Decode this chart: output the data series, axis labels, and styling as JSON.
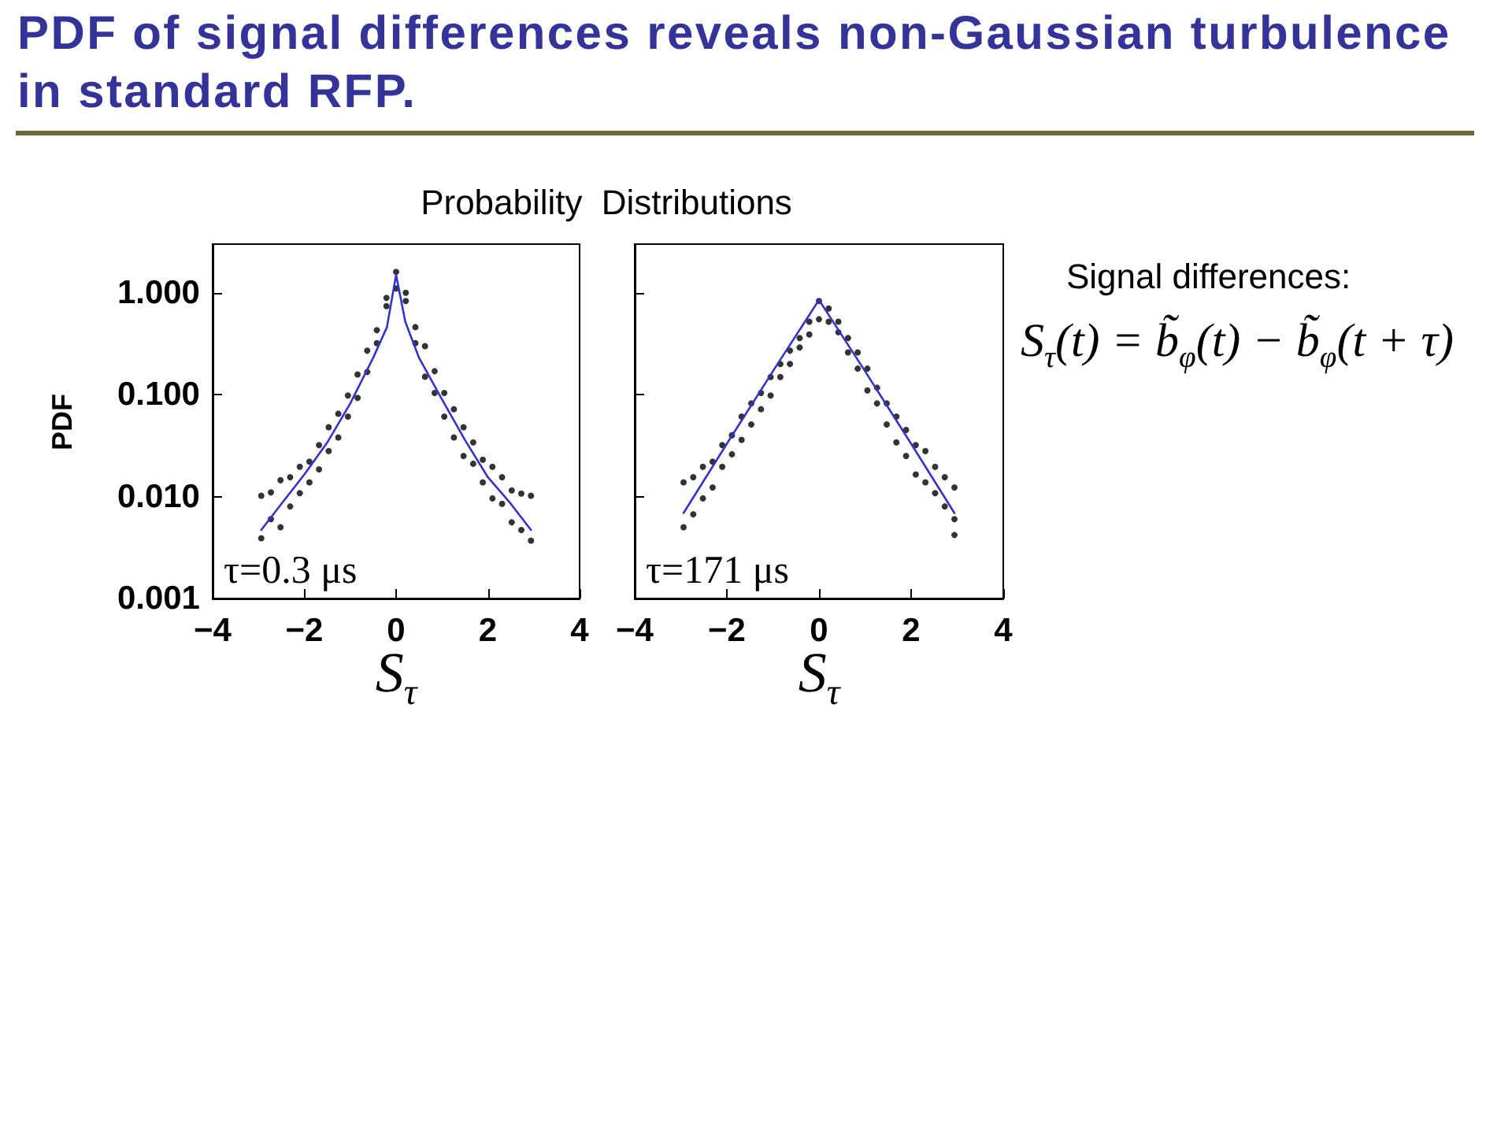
{
  "chart_data": [
    {
      "type": "scatter",
      "title": "PDF of signal differences reveals non-Gaussian turbulence in standard RFP.",
      "subtitle": "Probability Distributions",
      "xlabel": "S$_{τ}$",
      "ylabel": "PDF",
      "annotations": [
        "τ=0.3 μs"
      ],
      "xlim": [
        -4,
        4
      ],
      "xticks": [
        -4,
        -2,
        0,
        2,
        4
      ],
      "ylim": [
        0.001,
        3
      ],
      "yticks": [
        {
          "value": 0.001,
          "label": "0.001"
        },
        {
          "value": 0.01,
          "label": "0.010"
        },
        {
          "value": 0.1,
          "label": "0.100"
        },
        {
          "value": 1,
          "label": "1.000"
        }
      ],
      "log": "y",
      "series": [
        {
          "type": "scatter",
          "color": "#000000",
          "marker": "circle",
          "x": [
            -2.94,
            -2.94,
            -2.73,
            -2.73,
            -2.52,
            -2.52,
            -2.31,
            -2.31,
            -2.1,
            -2.1,
            -1.89,
            -1.89,
            -1.68,
            -1.68,
            -1.47,
            -1.47,
            -1.26,
            -1.26,
            -1.05,
            -1.05,
            -0.84,
            -0.84,
            -0.63,
            -0.63,
            -0.42,
            -0.42,
            -0.21,
            -0.21,
            0,
            0,
            0.21,
            0.21,
            0.42,
            0.42,
            0.63,
            0.63,
            0.84,
            0.84,
            1.05,
            1.05,
            1.26,
            1.26,
            1.47,
            1.47,
            1.68,
            1.68,
            1.89,
            1.89,
            2.1,
            2.1,
            2.31,
            2.31,
            2.52,
            2.52,
            2.73,
            2.73,
            2.94,
            2.94
          ],
          "values": [
            0.0102,
            0.0039,
            0.011,
            0.006,
            0.0145,
            0.005,
            0.0155,
            0.008,
            0.0196,
            0.0108,
            0.022,
            0.0138,
            0.032,
            0.0185,
            0.048,
            0.028,
            0.065,
            0.038,
            0.098,
            0.061,
            0.158,
            0.093,
            0.27,
            0.167,
            0.43,
            0.32,
            0.89,
            0.74,
            1.6,
            1.1,
            1.0,
            0.83,
            0.46,
            0.32,
            0.3,
            0.15,
            0.17,
            0.104,
            0.104,
            0.061,
            0.072,
            0.038,
            0.048,
            0.025,
            0.034,
            0.021,
            0.023,
            0.0138,
            0.0196,
            0.0096,
            0.0155,
            0.0085,
            0.0115,
            0.0056,
            0.0107,
            0.0047,
            0.0102,
            0.0037
          ]
        },
        {
          "type": "line",
          "color": "#3333cc",
          "marker": "none",
          "line_style": "solid",
          "x": [
            -2.94,
            -2.5,
            -2,
            -1.5,
            -1,
            -0.5,
            -0.2,
            0,
            0.2,
            0.5,
            1,
            1.5,
            2,
            2.5,
            2.94
          ],
          "values": [
            0.0047,
            0.0085,
            0.0165,
            0.034,
            0.082,
            0.23,
            0.46,
            1.5,
            0.52,
            0.23,
            0.09,
            0.036,
            0.0155,
            0.0085,
            0.0047
          ]
        }
      ]
    },
    {
      "type": "scatter",
      "xlabel": "S$_{τ}$",
      "annotations": [
        "τ=171 μs"
      ],
      "tick_labels": "x",
      "xlim": [
        -4,
        4
      ],
      "xticks": [
        -4,
        -2,
        0,
        2,
        4
      ],
      "ylim": [
        0.001,
        3
      ],
      "yticks": [
        0.001,
        0.01,
        0.1,
        1
      ],
      "log": "y",
      "series": [
        {
          "type": "scatter",
          "color": "#000000",
          "marker": "circle",
          "x": [
            -2.94,
            -2.94,
            -2.73,
            -2.73,
            -2.52,
            -2.52,
            -2.31,
            -2.31,
            -2.1,
            -2.1,
            -1.89,
            -1.89,
            -1.68,
            -1.68,
            -1.47,
            -1.47,
            -1.26,
            -1.26,
            -1.05,
            -1.05,
            -0.84,
            -0.84,
            -0.63,
            -0.63,
            -0.42,
            -0.42,
            -0.21,
            -0.21,
            0,
            0,
            0.21,
            0.21,
            0.42,
            0.42,
            0.63,
            0.63,
            0.84,
            0.84,
            1.05,
            1.05,
            1.26,
            1.26,
            1.47,
            1.47,
            1.68,
            1.68,
            1.89,
            1.89,
            2.1,
            2.1,
            2.31,
            2.31,
            2.52,
            2.52,
            2.73,
            2.73,
            2.94,
            2.94,
            2.94
          ],
          "values": [
            0.0138,
            0.005,
            0.0155,
            0.0067,
            0.0196,
            0.0096,
            0.022,
            0.0123,
            0.032,
            0.0196,
            0.04,
            0.026,
            0.061,
            0.036,
            0.082,
            0.051,
            0.104,
            0.072,
            0.149,
            0.098,
            0.2,
            0.149,
            0.27,
            0.2,
            0.36,
            0.29,
            0.52,
            0.39,
            0.83,
            0.55,
            0.7,
            0.52,
            0.52,
            0.41,
            0.36,
            0.26,
            0.26,
            0.18,
            0.18,
            0.11,
            0.117,
            0.082,
            0.082,
            0.051,
            0.061,
            0.034,
            0.045,
            0.025,
            0.032,
            0.0165,
            0.028,
            0.0138,
            0.0196,
            0.0108,
            0.0155,
            0.008,
            0.0123,
            0.006,
            0.0042
          ]
        },
        {
          "type": "line",
          "color": "#3333cc",
          "marker": "none",
          "line_style": "solid",
          "x": [
            -2.94,
            -2,
            -1,
            0,
            1,
            2,
            2.94
          ],
          "values": [
            0.0069,
            0.033,
            0.17,
            0.85,
            0.17,
            0.033,
            0.0069
          ]
        }
      ]
    },
    {
      "type": "other",
      "title": "Signal differences:",
      "annotations": [
        "S$_{τ}$(t) = b̃$_{φ}$(t) − b̃$_{φ}$(t + τ)"
      ]
    }
  ]
}
